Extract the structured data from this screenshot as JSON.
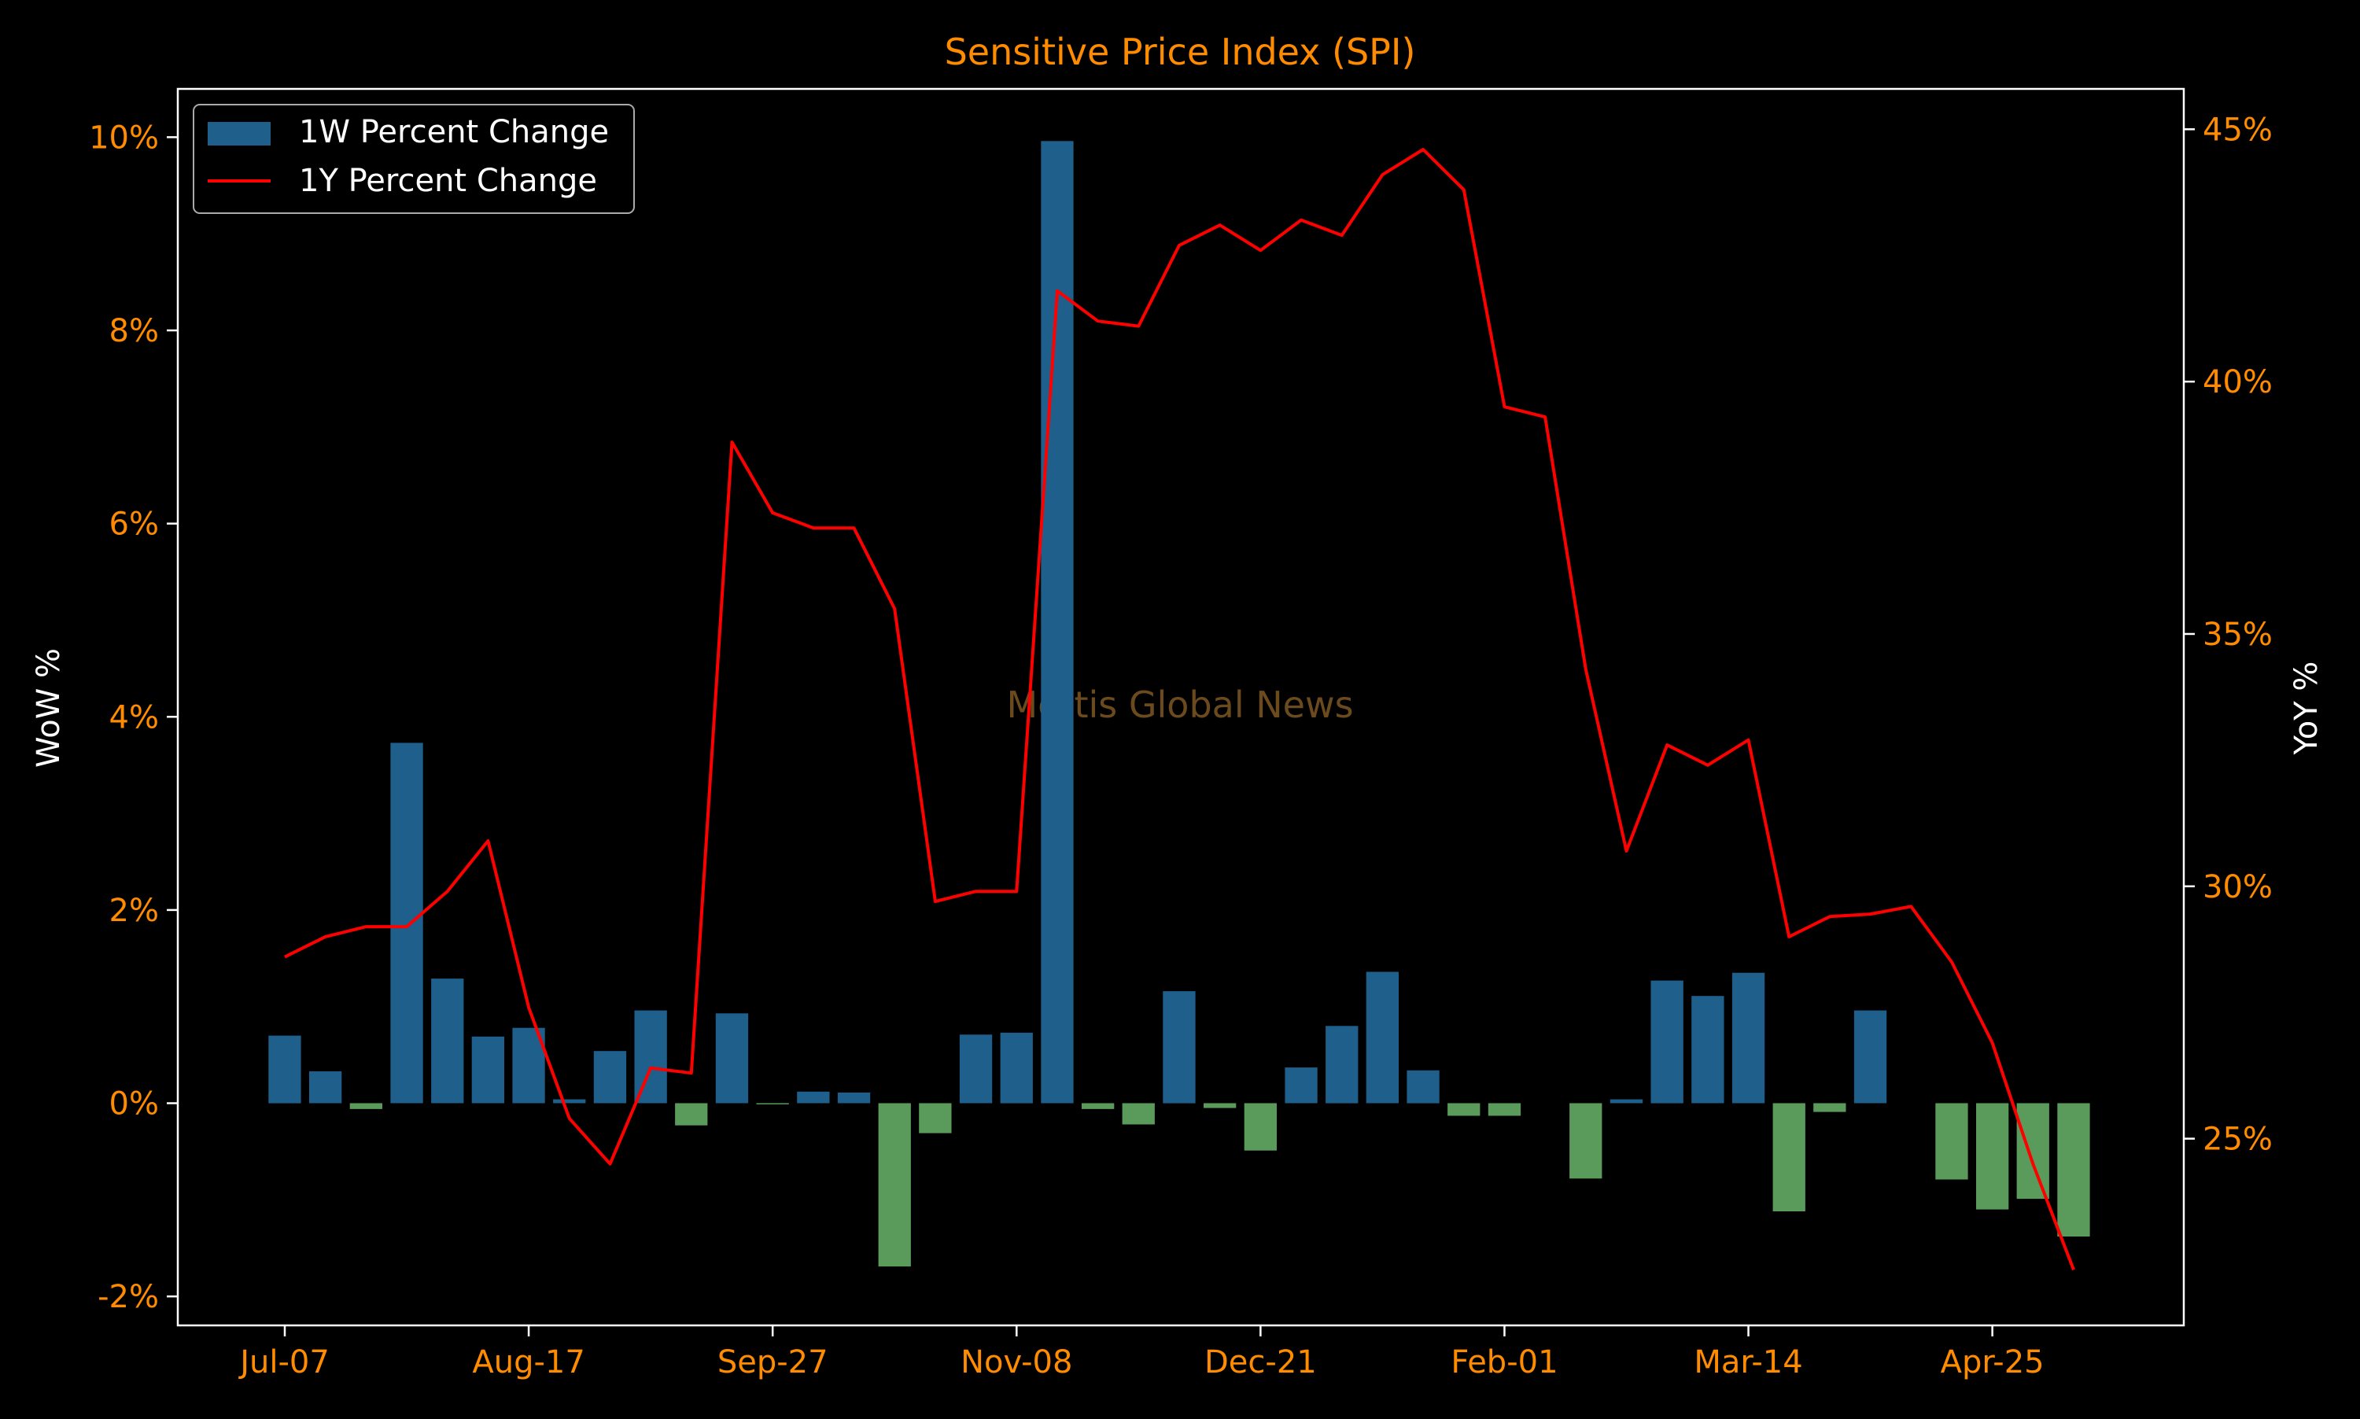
{
  "chart_data": {
    "type": "bar+line",
    "title": "Sensitive Price Index (SPI)",
    "ylabel_left": "WoW %",
    "ylabel_right": "YoY %",
    "watermark": "Mettis Global News",
    "legend_placement": "top-left",
    "grid": false,
    "left_ylim": [
      -2.3,
      10.5
    ],
    "left_ticks": [
      -2,
      0,
      2,
      4,
      6,
      8,
      10
    ],
    "left_tick_labels": [
      "-2%",
      "0%",
      "2%",
      "4%",
      "6%",
      "8%",
      "10%"
    ],
    "right_ylim": [
      21.3,
      45.8
    ],
    "right_ticks": [
      25,
      30,
      35,
      40,
      45
    ],
    "right_tick_labels": [
      "25%",
      "30%",
      "35%",
      "40%",
      "45%"
    ],
    "x_tick_labels": [
      "Jul-07",
      "Aug-17",
      "Sep-27",
      "Nov-08",
      "Dec-21",
      "Feb-01",
      "Mar-14",
      "Apr-25"
    ],
    "x_tick_week_index": [
      0,
      6,
      12,
      18,
      24,
      30,
      36,
      42
    ],
    "bar_colors": {
      "positive": "#1f5f8b",
      "negative": "#5a9a5a"
    },
    "line_color": "#ff0000",
    "text_colors": {
      "title": "#ff8c00",
      "ticks": "#ff8c00",
      "axis_labels": "#ffffff",
      "watermark": "#6b4a1e"
    },
    "series": [
      {
        "name": "1W Percent Change",
        "type": "bar",
        "values": [
          0.7,
          0.33,
          -0.06,
          3.73,
          1.29,
          0.69,
          0.78,
          0.04,
          0.54,
          0.96,
          -0.23,
          0.93,
          -0.01,
          0.12,
          0.11,
          -1.69,
          -0.31,
          0.71,
          0.73,
          9.96,
          -0.06,
          -0.22,
          1.16,
          -0.05,
          -0.49,
          0.37,
          0.8,
          1.36,
          0.34,
          -0.13,
          -0.13,
          null,
          -0.78,
          0.04,
          1.27,
          1.11,
          1.35,
          -1.12,
          -0.09,
          0.96,
          null,
          -0.79,
          -1.1,
          -0.99,
          -1.38
        ]
      },
      {
        "name": "1Y Percent Change",
        "type": "line",
        "values": [
          28.6,
          29.0,
          29.2,
          29.2,
          29.9,
          30.9,
          27.6,
          25.4,
          24.5,
          26.4,
          26.3,
          38.8,
          37.4,
          37.1,
          37.1,
          35.5,
          29.7,
          29.9,
          29.9,
          41.8,
          41.2,
          41.1,
          42.7,
          43.1,
          42.6,
          43.2,
          42.9,
          44.1,
          44.6,
          43.8,
          39.5,
          39.3,
          34.3,
          30.7,
          32.8,
          32.4,
          32.9,
          29.0,
          29.4,
          29.45,
          29.6,
          28.5,
          26.9,
          24.5,
          22.4
        ]
      }
    ]
  }
}
